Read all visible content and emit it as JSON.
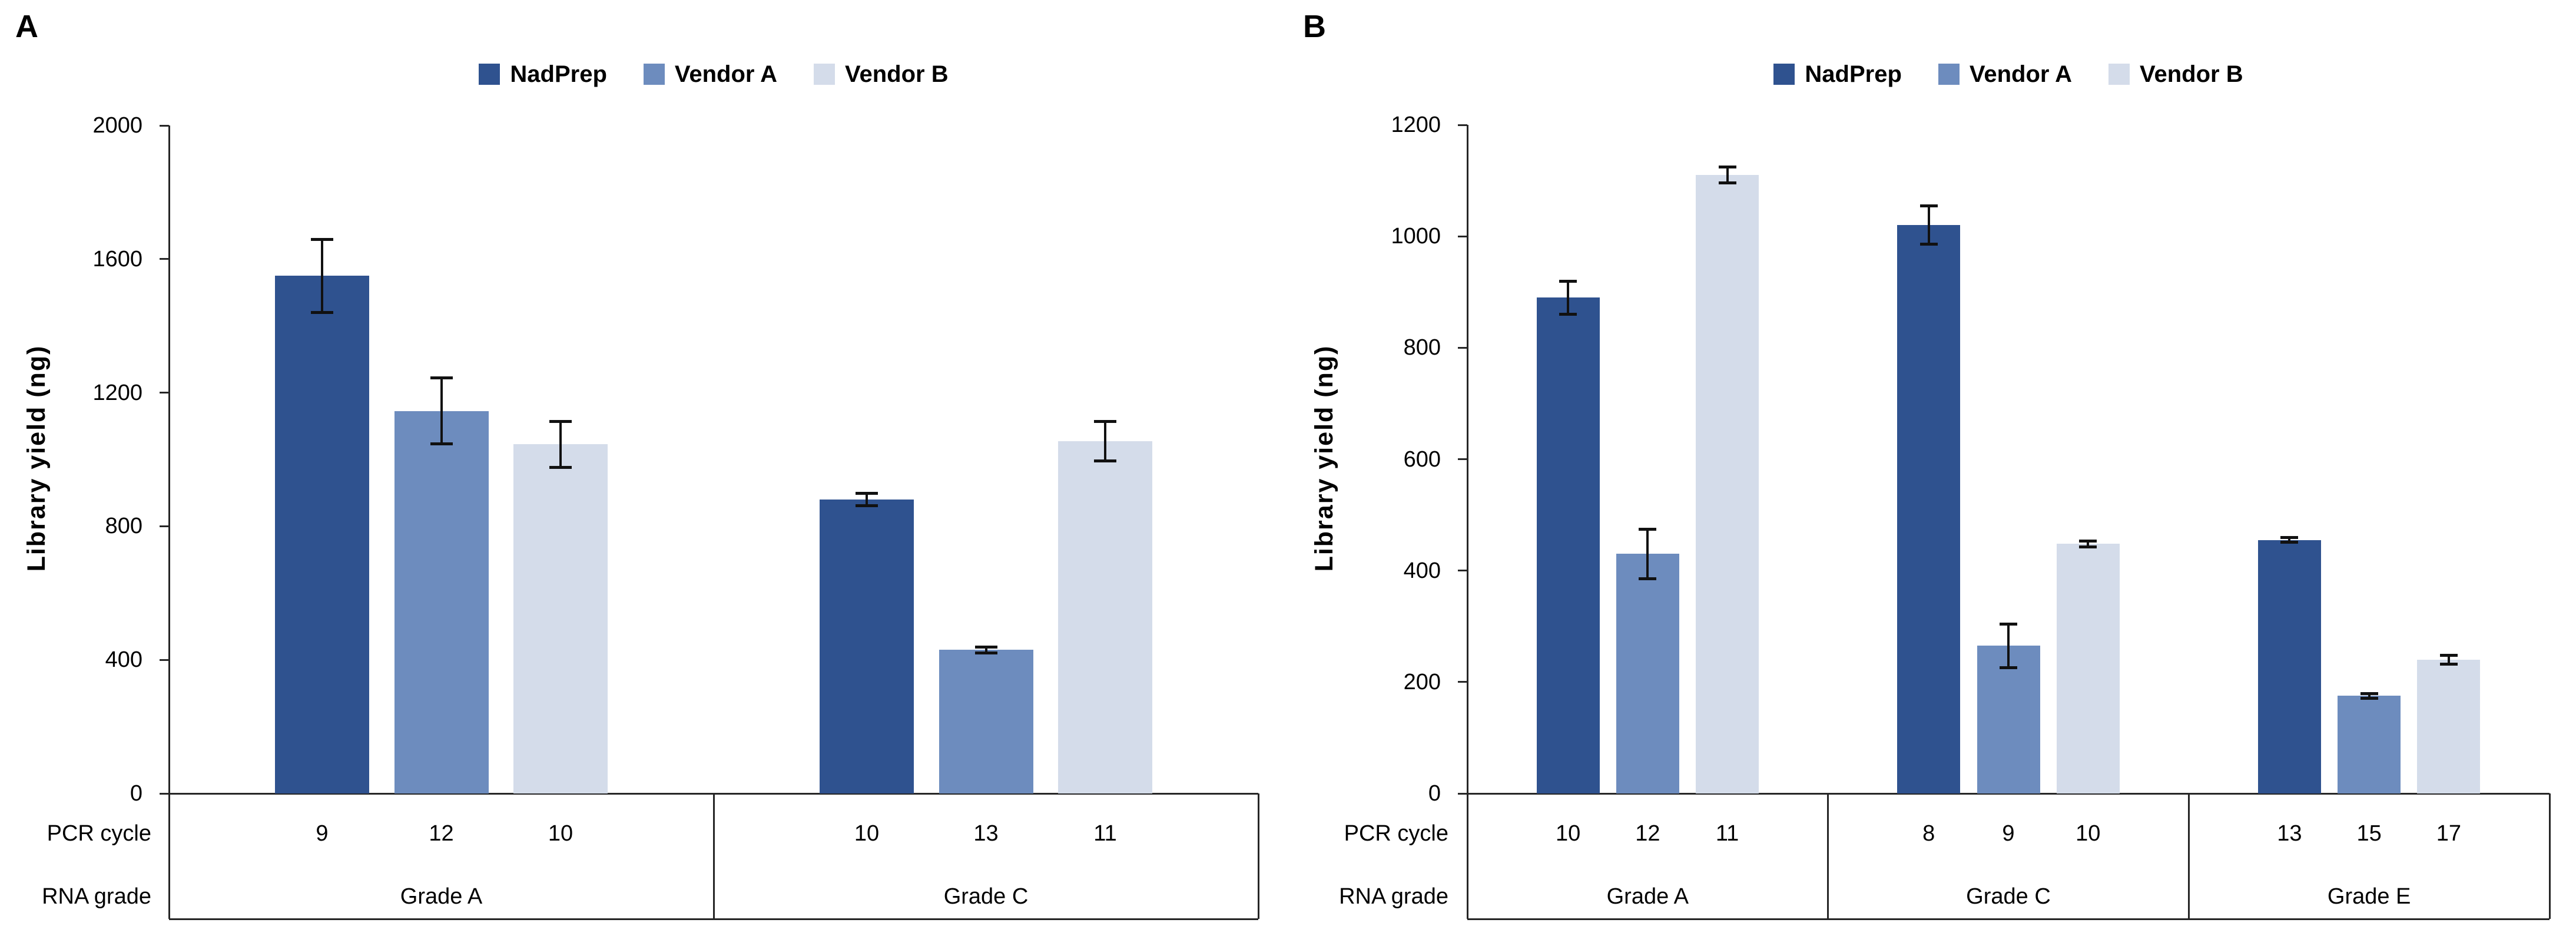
{
  "chart_data": [
    {
      "type": "bar",
      "panel": "A",
      "ylabel": "Library yield (ng)",
      "ylim": [
        0,
        2000
      ],
      "yticks": [
        0,
        400,
        800,
        1200,
        1600,
        2000
      ],
      "grid": false,
      "legend_position": "top",
      "row_labels": {
        "pcr": "PCR cycle",
        "rna": "RNA grade"
      },
      "groups": [
        {
          "rna_grade": "Grade A",
          "pcr_cycles": [
            "9",
            "12",
            "10"
          ]
        },
        {
          "rna_grade": "Grade C",
          "pcr_cycles": [
            "10",
            "13",
            "11"
          ]
        }
      ],
      "series": [
        {
          "name": "NadPrep",
          "color": "#2F528F",
          "values": [
            1550,
            880
          ],
          "errors": [
            110,
            20
          ]
        },
        {
          "name": "Vendor A",
          "color": "#6D8CBE",
          "values": [
            1145,
            430
          ],
          "errors": [
            100,
            10
          ]
        },
        {
          "name": "Vendor B",
          "color": "#D4DCEA",
          "values": [
            1045,
            1055
          ],
          "errors": [
            70,
            60
          ]
        }
      ]
    },
    {
      "type": "bar",
      "panel": "B",
      "ylabel": "Library yield (ng)",
      "ylim": [
        0,
        1200
      ],
      "yticks": [
        0,
        200,
        400,
        600,
        800,
        1000,
        1200
      ],
      "grid": false,
      "legend_position": "top",
      "row_labels": {
        "pcr": "PCR cycle",
        "rna": "RNA grade"
      },
      "groups": [
        {
          "rna_grade": "Grade A",
          "pcr_cycles": [
            "10",
            "12",
            "11"
          ]
        },
        {
          "rna_grade": "Grade C",
          "pcr_cycles": [
            "8",
            "9",
            "10"
          ]
        },
        {
          "rna_grade": "Grade E",
          "pcr_cycles": [
            "13",
            "15",
            "17"
          ]
        }
      ],
      "series": [
        {
          "name": "NadPrep",
          "color": "#2F528F",
          "values": [
            890,
            1020,
            455
          ],
          "errors": [
            30,
            35,
            5
          ]
        },
        {
          "name": "Vendor A",
          "color": "#6D8CBE",
          "values": [
            430,
            265,
            175
          ],
          "errors": [
            45,
            40,
            5
          ]
        },
        {
          "name": "Vendor B",
          "color": "#D4DCEA",
          "values": [
            1110,
            448,
            240
          ],
          "errors": [
            15,
            6,
            8
          ]
        }
      ]
    }
  ]
}
